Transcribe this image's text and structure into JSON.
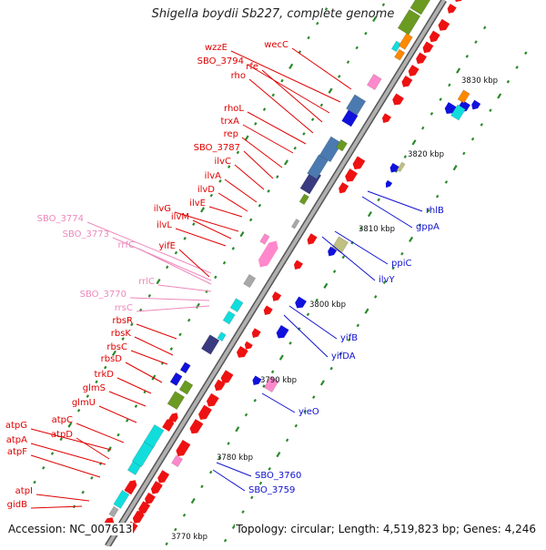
{
  "title": "Shigella boydii Sb227, complete genome",
  "accession_text": "Accession: NC_007613",
  "topology_text": "Topology: circular; Length: 4,519,823 bp; Genes: 4,246",
  "colors": {
    "backbone": "#b0b0b0",
    "backbone_edge": "#555555",
    "tick": "#2a8a2a",
    "label_left": "#e00000",
    "label_right": "#1010d0",
    "label_rna": "#ee88bb",
    "gene_red": "#ee1111",
    "gene_blue": "#1111dd",
    "gene_olive": "#6a9a20",
    "gene_cyan": "#11dddd",
    "gene_pink": "#ff88cc",
    "gene_navy": "#3a3a80",
    "gene_khaki": "#c0c080",
    "gene_gray": "#a8a8a8",
    "gene_orange": "#ff8800",
    "gene_steel": "#4a7ab0"
  },
  "kbp_labels": [
    "3770 kbp",
    "3780 kbp",
    "3790 kbp",
    "3800 kbp",
    "3810 kbp",
    "3820 kbp",
    "3830 kbp"
  ],
  "left_labels": [
    {
      "text": "wecC",
      "color": "red"
    },
    {
      "text": "wzzE",
      "color": "red"
    },
    {
      "text": "SBO_3794",
      "color": "red"
    },
    {
      "text": "rfe",
      "color": "red"
    },
    {
      "text": "rho",
      "color": "red"
    },
    {
      "text": "rhoL",
      "color": "red"
    },
    {
      "text": "trxA",
      "color": "red"
    },
    {
      "text": "rep",
      "color": "red"
    },
    {
      "text": "SBO_3787",
      "color": "red"
    },
    {
      "text": "ilvC",
      "color": "red"
    },
    {
      "text": "ilvA",
      "color": "red"
    },
    {
      "text": "ilvD",
      "color": "red"
    },
    {
      "text": "ilvE",
      "color": "red"
    },
    {
      "text": "ilvG",
      "color": "red"
    },
    {
      "text": "ilvM",
      "color": "red"
    },
    {
      "text": "ilvL",
      "color": "red"
    },
    {
      "text": "SBO_3774",
      "color": "pink"
    },
    {
      "text": "SBO_3773",
      "color": "pink"
    },
    {
      "text": "rrfC",
      "color": "pink"
    },
    {
      "text": "yifE",
      "color": "red"
    },
    {
      "text": "rrlC",
      "color": "pink"
    },
    {
      "text": "SBO_3770",
      "color": "pink"
    },
    {
      "text": "rrsC",
      "color": "pink"
    },
    {
      "text": "rbsR",
      "color": "red"
    },
    {
      "text": "rbsK",
      "color": "red"
    },
    {
      "text": "rbsC",
      "color": "red"
    },
    {
      "text": "rbsD",
      "color": "red"
    },
    {
      "text": "trkD",
      "color": "red"
    },
    {
      "text": "glmS",
      "color": "red"
    },
    {
      "text": "glmU",
      "color": "red"
    },
    {
      "text": "atpC",
      "color": "red"
    },
    {
      "text": "atpG",
      "color": "red"
    },
    {
      "text": "atpD",
      "color": "red"
    },
    {
      "text": "atpA",
      "color": "red"
    },
    {
      "text": "atpF",
      "color": "red"
    },
    {
      "text": "atpI",
      "color": "red"
    },
    {
      "text": "gidB",
      "color": "red"
    }
  ],
  "right_labels": [
    {
      "text": "rhlB"
    },
    {
      "text": "gppA"
    },
    {
      "text": "ppiC"
    },
    {
      "text": "ilvY"
    },
    {
      "text": "yifB"
    },
    {
      "text": "yifDA"
    },
    {
      "text": "yieO"
    },
    {
      "text": "SBO_3760"
    },
    {
      "text": "SBO_3759"
    }
  ]
}
